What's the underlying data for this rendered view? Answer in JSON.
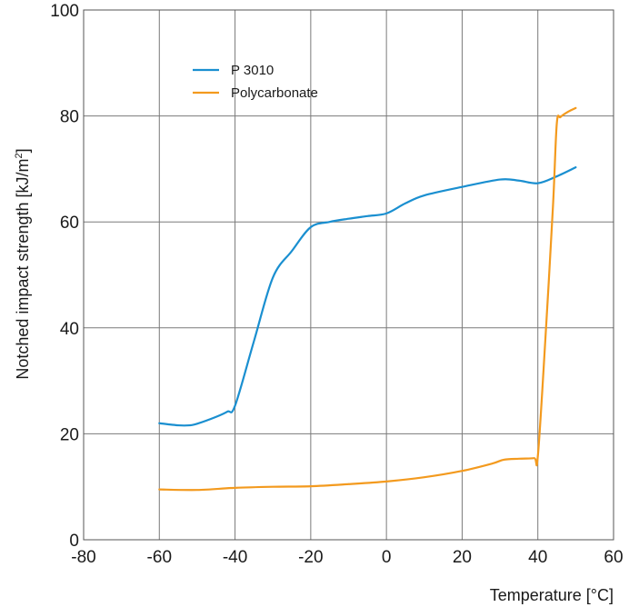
{
  "chart_data": {
    "type": "line",
    "xlabel": "Temperature [°C]",
    "ylabel": "Notched impact strength [kJ/m²]",
    "ylabel_parts": {
      "main": "Notched impact strength [kJ/m",
      "sup": "2",
      "end": "]"
    },
    "xlim": [
      -80,
      60
    ],
    "ylim": [
      0,
      100
    ],
    "x_ticks": [
      -80,
      -60,
      -40,
      -20,
      0,
      20,
      40,
      60
    ],
    "y_ticks": [
      0,
      20,
      40,
      60,
      80,
      100
    ],
    "x_tick_labels": [
      "-80",
      "-60",
      "-40",
      "-20",
      "0",
      "20",
      "40",
      "60"
    ],
    "y_tick_labels": [
      "0",
      "20",
      "40",
      "60",
      "80",
      "100"
    ],
    "grid": true,
    "legend_position": "top-left",
    "series": [
      {
        "name": "P 3010",
        "color": "#1a8fd0",
        "x": [
          -60,
          -55,
          -52,
          -50,
          -45,
          -42,
          -40,
          -35,
          -30,
          -25,
          -20,
          -15,
          -10,
          -5,
          0,
          5,
          10,
          20,
          30,
          35,
          40,
          45,
          50
        ],
        "y": [
          22,
          21.6,
          21.6,
          21.9,
          23.2,
          24.2,
          25.3,
          37.5,
          49.5,
          54.5,
          59.0,
          60.0,
          60.6,
          61.1,
          61.6,
          63.5,
          65.0,
          66.6,
          68.0,
          67.8,
          67.3,
          68.6,
          70.3
        ]
      },
      {
        "name": "Polycarbonate",
        "color": "#f39a1e",
        "x": [
          -60,
          -50,
          -40,
          -30,
          -20,
          -10,
          0,
          10,
          20,
          28,
          31,
          35,
          39,
          40,
          42,
          44,
          45,
          46,
          48,
          50
        ],
        "y": [
          9.5,
          9.4,
          9.8,
          10.0,
          10.1,
          10.5,
          11.0,
          11.8,
          13.0,
          14.4,
          15.1,
          15.3,
          15.4,
          15.8,
          38.0,
          63.0,
          78.5,
          79.8,
          80.8,
          81.5
        ]
      }
    ]
  }
}
